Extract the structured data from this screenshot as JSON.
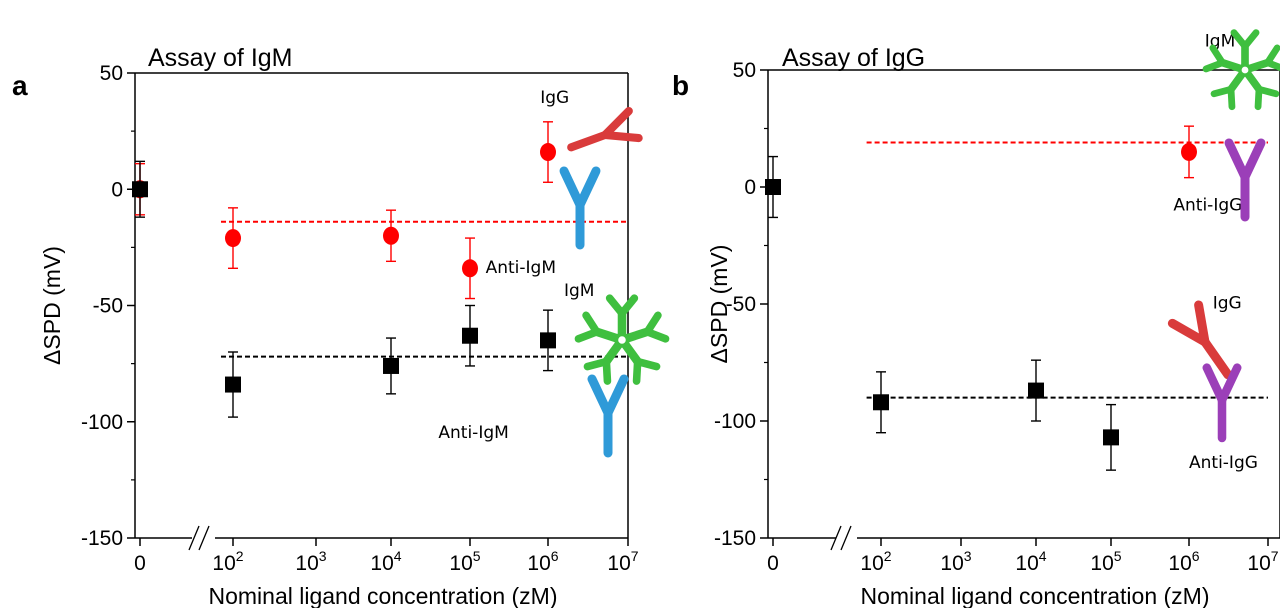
{
  "chart_data": [
    {
      "panel": "a",
      "type": "scatter",
      "title": "Assay of IgM",
      "xlabel": "Nominal ligand concentration (zM)",
      "ylabel": "ΔSPD (mV)",
      "ylim": [
        -150,
        50
      ],
      "yticks": [
        "50",
        "0",
        "-50",
        "-100",
        "-150"
      ],
      "xticks": [
        {
          "x": 0,
          "base": "0",
          "exp": ""
        },
        {
          "x": 2,
          "base": "10",
          "exp": "2"
        },
        {
          "x": 3,
          "base": "10",
          "exp": "3"
        },
        {
          "x": 4,
          "base": "10",
          "exp": "4"
        },
        {
          "x": 5,
          "base": "10",
          "exp": "5"
        },
        {
          "x": 6,
          "base": "10",
          "exp": "6"
        },
        {
          "x": 7,
          "base": "10",
          "exp": "7"
        }
      ],
      "axis_break": true,
      "series": [
        {
          "marker": "circle",
          "color": "#ff0000",
          "points": [
            {
              "x": 0,
              "y": 0,
              "err": 11
            },
            {
              "x": 2,
              "y": -21,
              "err": 13
            },
            {
              "x": 4,
              "y": -20,
              "err": 11
            },
            {
              "x": 5,
              "y": -34,
              "err": 13
            },
            {
              "x": 6,
              "y": 16,
              "err": 13
            }
          ]
        },
        {
          "marker": "square",
          "color": "#000000",
          "points": [
            {
              "x": 0,
              "y": 0,
              "err": 12
            },
            {
              "x": 2,
              "y": -84,
              "err": 14
            },
            {
              "x": 4,
              "y": -76,
              "err": 12
            },
            {
              "x": 5,
              "y": -63,
              "err": 13
            },
            {
              "x": 6,
              "y": -65,
              "err": 13
            }
          ]
        }
      ],
      "reference_lines": [
        {
          "y": -14,
          "color": "#ff0000",
          "x_from": 1.6,
          "x_to": 7
        },
        {
          "y": -72,
          "color": "#000000",
          "x_from": 1.6,
          "x_to": 7
        }
      ],
      "annotations": [
        {
          "text": "IgG",
          "x": 5.9,
          "y": 37
        },
        {
          "text": "Anti-IgM",
          "x": 5.2,
          "y": -36
        },
        {
          "text": "IgM",
          "x": 6.2,
          "y": -46
        },
        {
          "text": "Anti-IgM",
          "x": 4.6,
          "y": -107
        }
      ]
    },
    {
      "panel": "b",
      "type": "scatter",
      "title": "Assay of IgG",
      "xlabel": "Nominal ligand concentration (zM)",
      "ylabel": "ΔSPD (mV)",
      "ylim": [
        -150,
        50
      ],
      "yticks": [
        "50",
        "0",
        "-50",
        "-100",
        "-150"
      ],
      "xticks": [
        {
          "x": 0,
          "base": "0",
          "exp": ""
        },
        {
          "x": 2,
          "base": "10",
          "exp": "2"
        },
        {
          "x": 3,
          "base": "10",
          "exp": "3"
        },
        {
          "x": 4,
          "base": "10",
          "exp": "4"
        },
        {
          "x": 5,
          "base": "10",
          "exp": "5"
        },
        {
          "x": 6,
          "base": "10",
          "exp": "6"
        },
        {
          "x": 7,
          "base": "10",
          "exp": "7"
        }
      ],
      "axis_break": true,
      "series": [
        {
          "marker": "circle",
          "color": "#ff0000",
          "points": [
            {
              "x": 6,
              "y": 15,
              "err": 11
            }
          ]
        },
        {
          "marker": "square",
          "color": "#000000",
          "points": [
            {
              "x": 0,
              "y": 0,
              "err": 13
            },
            {
              "x": 2,
              "y": -92,
              "err": 13
            },
            {
              "x": 4,
              "y": -87,
              "err": 13
            },
            {
              "x": 5,
              "y": -107,
              "err": 14
            }
          ]
        }
      ],
      "reference_lines": [
        {
          "y": 19,
          "color": "#ff0000",
          "x_from": 1.6,
          "x_to": 7
        },
        {
          "y": -90,
          "color": "#000000",
          "x_from": 1.6,
          "x_to": 7
        }
      ],
      "annotations": [
        {
          "text": "IgM",
          "x": 6.2,
          "y": 60
        },
        {
          "text": "Anti-IgG",
          "x": 5.8,
          "y": -10
        },
        {
          "text": "IgG",
          "x": 6.3,
          "y": -52
        },
        {
          "text": "Anti-IgG",
          "x": 6.0,
          "y": -120
        }
      ]
    }
  ],
  "colors": {
    "red_series": "#ff0000",
    "black_series": "#000000",
    "igg_protein": "#d93b3b",
    "anti_igm_protein": "#2f9ad8",
    "igm_protein": "#3fbf3f",
    "anti_igg_protein": "#9b3fb8"
  }
}
